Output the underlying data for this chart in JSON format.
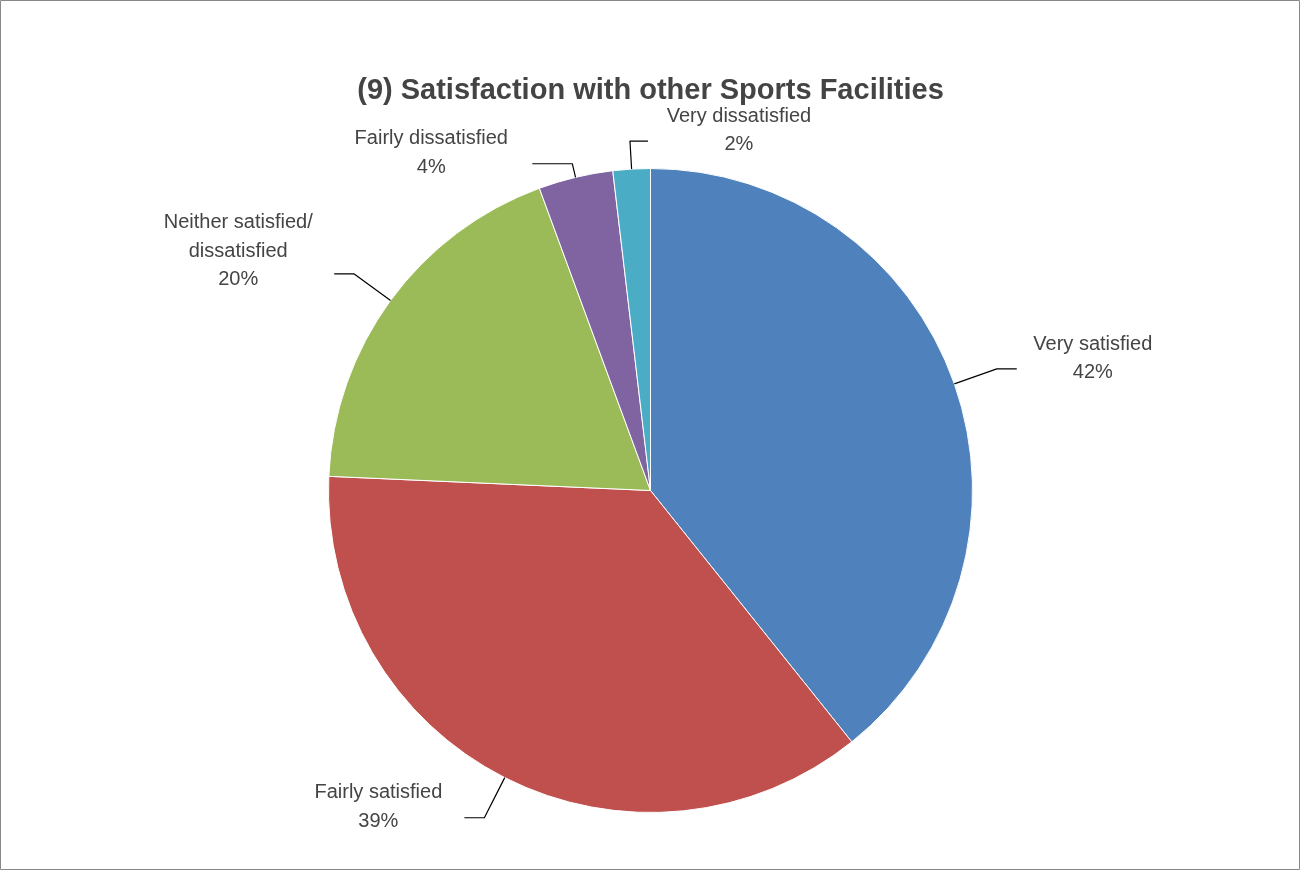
{
  "chart_data": {
    "type": "pie",
    "title": "(9) Satisfaction with other Sports Facilities",
    "categories": [
      "Very satisfied",
      "Fairly satisfied",
      "Neither satisfied/ dissatisfied",
      "Fairly dissatisfied",
      "Very dissatisfied"
    ],
    "values": [
      42,
      39,
      20,
      4,
      2
    ],
    "value_labels": [
      "42%",
      "39%",
      "20%",
      "4%",
      "2%"
    ],
    "colors": [
      "#4f81bd",
      "#c0504d",
      "#9bbb59",
      "#8064a2",
      "#4bacc6"
    ]
  }
}
